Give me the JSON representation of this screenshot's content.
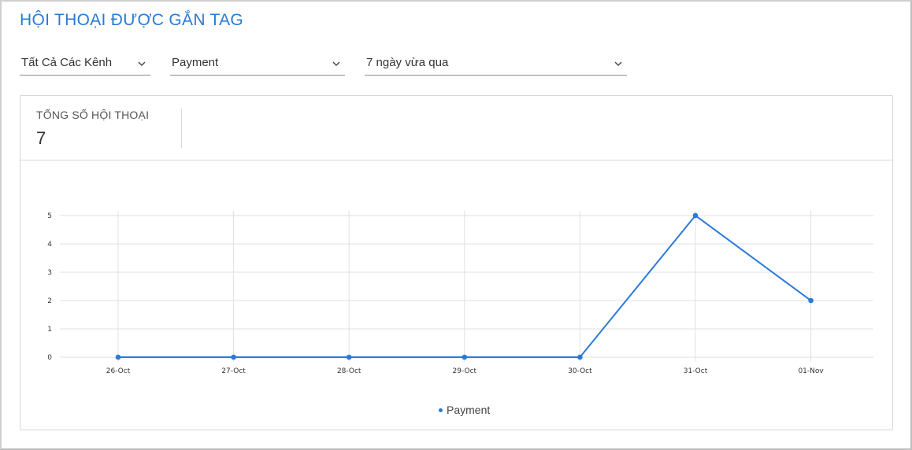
{
  "page": {
    "title": "HỘI THOẠI ĐƯỢC GẮN TAG"
  },
  "filters": {
    "channel": "Tất Cả Các Kênh",
    "tag": "Payment",
    "range": "7 ngày vừa qua"
  },
  "summary": {
    "label": "TỔNG SỐ HỘI THOẠI",
    "value": "7"
  },
  "colors": {
    "accent": "#2a7ad6",
    "grid": "#e0e0e0"
  },
  "chart_data": {
    "type": "line",
    "categories": [
      "26-Oct",
      "27-Oct",
      "28-Oct",
      "29-Oct",
      "30-Oct",
      "31-Oct",
      "01-Nov"
    ],
    "series": [
      {
        "name": "Payment",
        "values": [
          0,
          0,
          0,
          0,
          0,
          5,
          2
        ]
      }
    ],
    "yticks": [
      "0",
      "1",
      "2",
      "3",
      "4",
      "5"
    ],
    "ylim": [
      0,
      5
    ],
    "grid": true,
    "legend": "bottom-center",
    "legend_label": "Payment"
  }
}
